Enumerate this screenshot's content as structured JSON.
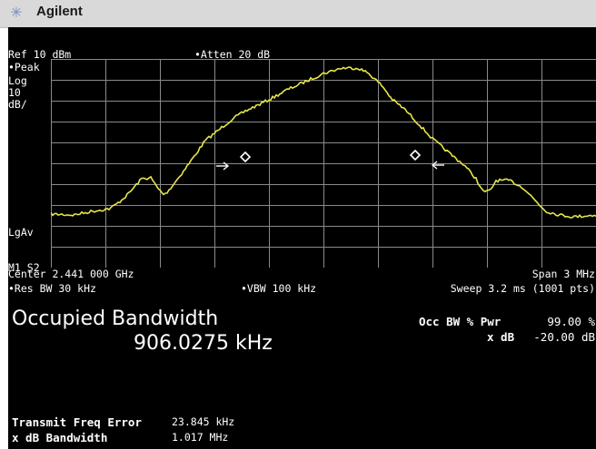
{
  "window": {
    "title": "Agilent"
  },
  "header": {
    "ref": "Ref 10 dBm",
    "atten": "•Atten 20 dB"
  },
  "left_labels": {
    "detector": "•Peak",
    "scale_type": "Log",
    "scale_value": "10",
    "scale_unit": "dB/",
    "averaging": "LgAv",
    "markers": "M1 S2"
  },
  "footer": {
    "center": "Center 2.441 000 GHz",
    "span": "Span 3 MHz",
    "res_bw": "•Res BW 30 kHz",
    "vbw": "•VBW 100 kHz",
    "sweep": "Sweep 3.2 ms (1001 pts)"
  },
  "measurement": {
    "title": "Occupied Bandwidth",
    "value": "906.0275 kHz",
    "occ_bw_label": "Occ BW % Pwr",
    "occ_bw_value": "99.00 %",
    "xdb_label": "x dB",
    "xdb_value": "-20.00 dB",
    "tfe_label": "Transmit Freq Error",
    "tfe_value": "23.845 kHz",
    "xdb_bw_label": "x dB Bandwidth",
    "xdb_bw_value": "1.017 MHz"
  },
  "colors": {
    "trace": "#e6e64a",
    "grid": "#8a8a8a",
    "background": "#000000"
  },
  "icons": {
    "logo": "agilent-spark-icon"
  }
}
